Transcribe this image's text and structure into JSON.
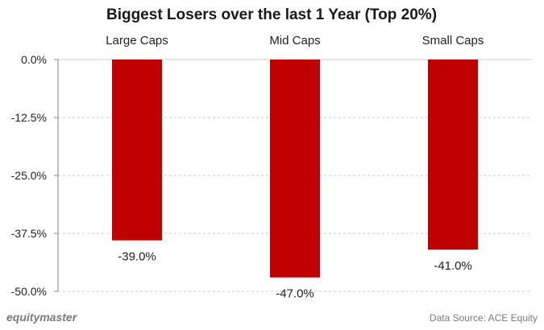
{
  "chart_data": {
    "type": "bar",
    "title": "Biggest Losers over the last 1 Year (Top 20%)",
    "categories": [
      "Large Caps",
      "Mid Caps",
      "Small Caps"
    ],
    "values": [
      -39.0,
      -47.0,
      -41.0
    ],
    "data_labels": [
      "-39.0%",
      "-47.0%",
      "-41.0%"
    ],
    "ylim": [
      -50,
      0
    ],
    "yticks": [
      0,
      -12.5,
      -25,
      -37.5,
      -50
    ],
    "ytick_labels": [
      "0.0%",
      "-12.5%",
      "-25.0%",
      "-37.5%",
      "-50.0%"
    ],
    "category_label_position": "top",
    "grid": true,
    "legend": "none",
    "xlabel": "",
    "ylabel": "",
    "bar_color": "#c00000",
    "grid_color": "#cccccc"
  },
  "footer": {
    "brand": "equitymaster",
    "source": "Data Source: ACE Equity"
  }
}
